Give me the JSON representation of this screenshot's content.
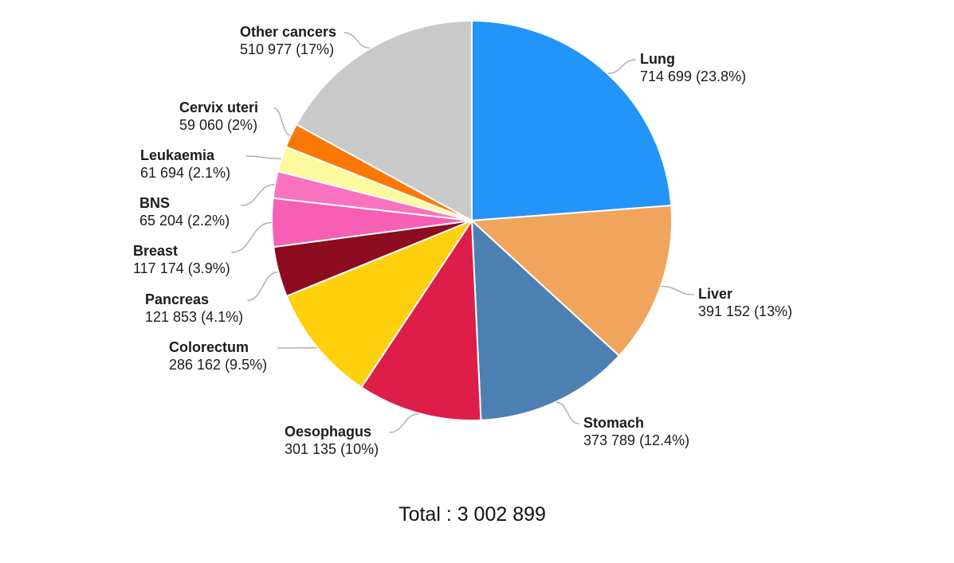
{
  "chart_data": {
    "type": "pie",
    "title": "",
    "total_label": "Total : 3 002 899",
    "total_value": 3002899,
    "legend_position": "outside-callout-labels",
    "separator_color": "#ffffff",
    "leader_line_color": "#ababab",
    "text_color": "#1c1c1c",
    "slices": [
      {
        "label": "Lung",
        "value": 714699,
        "percent": 23.8,
        "display": "714 699 (23.8%)",
        "color": "#2394fa"
      },
      {
        "label": "Liver",
        "value": 391152,
        "percent": 13.0,
        "display": "391 152 (13%)",
        "color": "#f0a45c"
      },
      {
        "label": "Stomach",
        "value": 373789,
        "percent": 12.4,
        "display": "373 789 (12.4%)",
        "color": "#4d80b2"
      },
      {
        "label": "Oesophagus",
        "value": 301135,
        "percent": 10.0,
        "display": "301 135 (10%)",
        "color": "#dc1e48"
      },
      {
        "label": "Colorectum",
        "value": 286162,
        "percent": 9.5,
        "display": "286 162 (9.5%)",
        "color": "#ffd00e"
      },
      {
        "label": "Pancreas",
        "value": 121853,
        "percent": 4.1,
        "display": "121 853 (4.1%)",
        "color": "#8d0b1f"
      },
      {
        "label": "Breast",
        "value": 117174,
        "percent": 3.9,
        "display": "117 174 (3.9%)",
        "color": "#f75fb2"
      },
      {
        "label": "BNS",
        "value": 65204,
        "percent": 2.2,
        "display": "65 204 (2.2%)",
        "color": "#f973be"
      },
      {
        "label": "Leukaemia",
        "value": 61694,
        "percent": 2.1,
        "display": "61 694 (2.1%)",
        "color": "#fcfa9d"
      },
      {
        "label": "Cervix uteri",
        "value": 59060,
        "percent": 2.0,
        "display": "59 060 (2%)",
        "color": "#fb7805"
      },
      {
        "label": "Other cancers",
        "value": 510977,
        "percent": 17.0,
        "display": "510 977 (17%)",
        "color": "#c9c9c9"
      }
    ]
  }
}
